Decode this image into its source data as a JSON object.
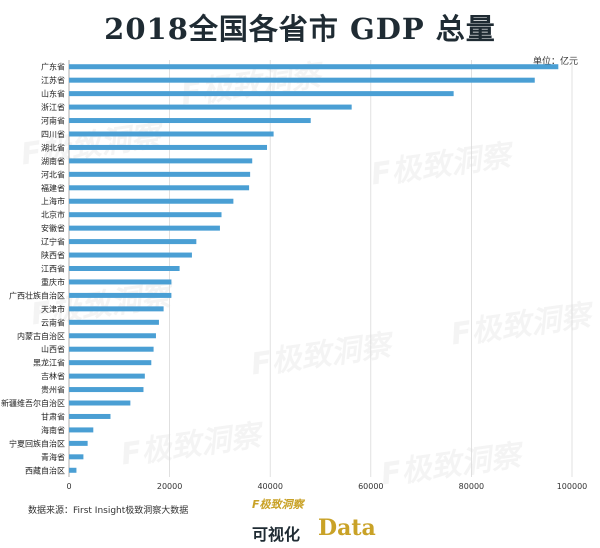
{
  "header": {
    "title": "2018全国各省市 GDP 总量",
    "unit": "单位：亿元"
  },
  "source": "数据来源：First Insight极致洞察大数据",
  "footer": {
    "brand": "F极致洞察",
    "text": "可视化",
    "data_word": "Data"
  },
  "watermark": "F极致洞察",
  "colors": {
    "bar": "#4a9fd4",
    "grid": "#d9d9d9",
    "axis": "#999999"
  },
  "chart_data": {
    "type": "bar",
    "orientation": "horizontal",
    "categories": [
      "广东省",
      "江苏省",
      "山东省",
      "浙江省",
      "河南省",
      "四川省",
      "湖北省",
      "湖南省",
      "河北省",
      "福建省",
      "上海市",
      "北京市",
      "安徽省",
      "辽宁省",
      "陕西省",
      "江西省",
      "重庆市",
      "广西壮族自治区",
      "天津市",
      "云南省",
      "内蒙古自治区",
      "山西省",
      "黑龙江省",
      "吉林省",
      "贵州省",
      "新疆维吾尔自治区",
      "甘肃省",
      "海南省",
      "宁夏回族自治区",
      "青海省",
      "西藏自治区"
    ],
    "values": [
      97278,
      92595,
      76470,
      56197,
      48055,
      40678,
      39367,
      36426,
      36010,
      35804,
      32680,
      30320,
      30007,
      25315,
      24438,
      21985,
      20363,
      20353,
      18810,
      17881,
      17289,
      16818,
      16362,
      15075,
      14806,
      12199,
      8246,
      4832,
      3705,
      2865,
      1478
    ],
    "xticks": [
      0,
      20000,
      40000,
      60000,
      80000,
      100000
    ],
    "xlim": [
      0,
      100000
    ],
    "grid": true
  }
}
